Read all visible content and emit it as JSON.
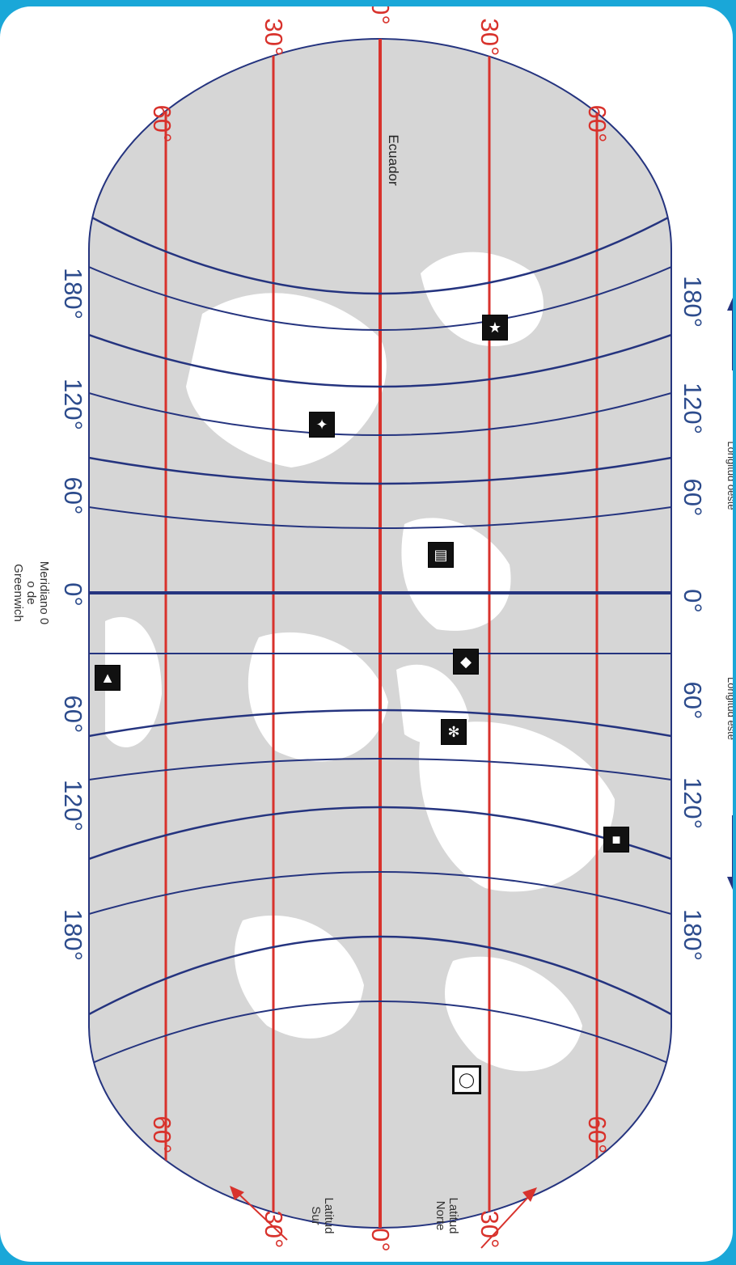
{
  "map": {
    "longitude_labels": {
      "west_side": [
        "180°",
        "120°",
        "60°",
        "0°",
        "60°",
        "120°",
        "180°"
      ],
      "east_side": [
        "180°",
        "120°",
        "60°",
        "0°",
        "60°",
        "120°",
        "180°"
      ]
    },
    "latitude_labels": {
      "top": [
        "30°",
        "60°",
        "0°",
        "30°",
        "60°"
      ],
      "bottom": [
        "60°",
        "30°",
        "0°",
        "30°",
        "60°"
      ]
    },
    "equator_label": "Ecuador",
    "meridian_label": "Meridiano 0\no de\nGreenwich",
    "longitude_west_label": "Longitud oeste",
    "longitude_east_label": "Longitud este",
    "latitude_north_label": "Latitud\nNorte",
    "latitude_south_label": "Latitud\nSur",
    "icons": [
      "kangaroo-icon",
      "koala-icon",
      "mosque-icon",
      "sphinx-icon",
      "camel-icon",
      "pagoda-icon",
      "penguin-icon",
      "statue-icon",
      "building-icon"
    ],
    "colors": {
      "meridian": "#25347f",
      "parallel": "#d8322c",
      "land": "#d6d6d6",
      "ocean": "#ffffff",
      "frame": "#1aa7d8"
    }
  }
}
